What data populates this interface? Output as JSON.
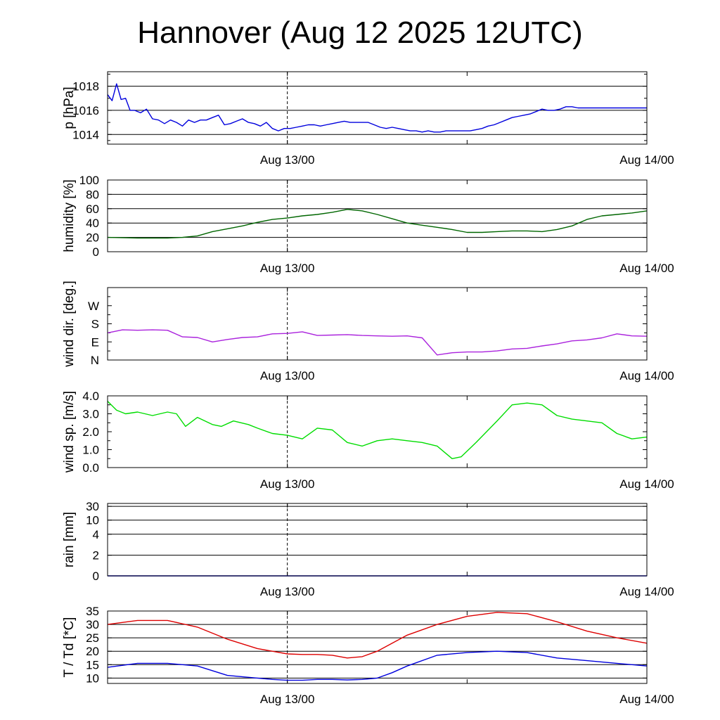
{
  "title": "Hannover (Aug 12 2025 12UTC)",
  "chart_data": [
    {
      "type": "line",
      "ylabel": "p [hPa]",
      "x_tick_labels": [
        "Aug 13/00",
        "Aug 14/00"
      ],
      "x_range_hours": [
        0,
        36
      ],
      "ylim": [
        1013.2,
        1019.2
      ],
      "yticks": [
        1014,
        1016,
        1018
      ],
      "ytick_labels": [
        "1014",
        "1016",
        "1018"
      ],
      "grid": "horizontal",
      "series": [
        {
          "color": "#0000dd",
          "x": [
            0,
            0.3,
            0.6,
            0.9,
            1.2,
            1.5,
            1.8,
            2.2,
            2.6,
            3.0,
            3.4,
            3.8,
            4.2,
            4.6,
            5.0,
            5.4,
            5.8,
            6.2,
            6.6,
            7.0,
            7.4,
            7.8,
            8.2,
            8.6,
            9.0,
            9.4,
            9.8,
            10.2,
            10.6,
            11.0,
            11.4,
            11.8,
            12.2,
            12.6,
            13.0,
            13.4,
            13.8,
            14.2,
            14.6,
            15.0,
            15.4,
            15.8,
            16.2,
            16.6,
            17.0,
            17.4,
            17.8,
            18.2,
            18.6,
            19.0,
            19.4,
            19.8,
            20.2,
            20.6,
            21.0,
            21.4,
            21.8,
            22.2,
            22.6,
            23.0,
            23.4,
            23.8,
            24.2,
            24.6,
            25.0,
            25.4,
            25.8,
            26.2,
            26.6,
            27.0,
            27.4,
            27.8,
            28.2,
            28.6,
            29.0,
            29.4,
            29.8,
            30.2,
            30.6,
            31.0,
            31.4,
            31.8,
            32.2,
            32.6,
            33.0,
            33.4,
            33.8,
            34.2,
            34.6,
            35.0,
            35.4,
            35.8,
            36.0
          ],
          "y": [
            1017.3,
            1016.8,
            1018.2,
            1016.9,
            1017.0,
            1016.0,
            1016.0,
            1015.8,
            1016.1,
            1015.3,
            1015.2,
            1014.9,
            1015.2,
            1015.0,
            1014.7,
            1015.2,
            1015.0,
            1015.2,
            1015.2,
            1015.4,
            1015.6,
            1014.8,
            1014.9,
            1015.1,
            1015.3,
            1015.0,
            1014.9,
            1014.7,
            1015.0,
            1014.5,
            1014.3,
            1014.5,
            1014.5,
            1014.6,
            1014.7,
            1014.8,
            1014.8,
            1014.7,
            1014.8,
            1014.9,
            1015.0,
            1015.1,
            1015.0,
            1015.0,
            1015.0,
            1015.0,
            1014.8,
            1014.6,
            1014.5,
            1014.6,
            1014.5,
            1014.4,
            1014.3,
            1014.3,
            1014.2,
            1014.3,
            1014.2,
            1014.2,
            1014.3,
            1014.3,
            1014.3,
            1014.3,
            1014.3,
            1014.4,
            1014.5,
            1014.7,
            1014.8,
            1015.0,
            1015.2,
            1015.4,
            1015.5,
            1015.6,
            1015.7,
            1015.9,
            1016.1,
            1016.0,
            1016.0,
            1016.1,
            1016.3,
            1016.3,
            1016.2,
            1016.2,
            1016.2,
            1016.2,
            1016.2,
            1016.2,
            1016.2,
            1016.2,
            1016.2,
            1016.2,
            1016.2,
            1016.2,
            1016.2
          ]
        }
      ]
    },
    {
      "type": "line",
      "ylabel": "humidity [%]",
      "x_tick_labels": [
        "Aug 13/00",
        "Aug 14/00"
      ],
      "x_range_hours": [
        0,
        36
      ],
      "ylim": [
        0,
        100
      ],
      "yticks": [
        0,
        20,
        40,
        60,
        80,
        100
      ],
      "ytick_labels": [
        "0",
        "20",
        "40",
        "60",
        "80",
        "100"
      ],
      "grid": "horizontal",
      "series": [
        {
          "color": "#006600",
          "x": [
            0,
            2,
            4,
            5,
            6,
            7,
            8,
            9,
            10,
            11,
            12,
            13,
            14,
            15,
            16,
            17,
            18,
            19,
            20,
            21,
            22,
            23,
            24,
            25,
            26,
            27,
            28,
            29,
            30,
            31,
            32,
            33,
            34,
            35,
            36
          ],
          "y": [
            20,
            19,
            19,
            20,
            22,
            28,
            32,
            36,
            41,
            45,
            47,
            50,
            52,
            55,
            59,
            57,
            52,
            46,
            40,
            37,
            34,
            31,
            27,
            27,
            28,
            29,
            29,
            28,
            31,
            36,
            45,
            50,
            52,
            54,
            57
          ]
        }
      ]
    },
    {
      "type": "line",
      "ylabel": "wind dir. [deg.]",
      "x_tick_labels": [
        "Aug 13/00",
        "Aug 14/00"
      ],
      "x_range_hours": [
        0,
        36
      ],
      "ylim": [
        0,
        360
      ],
      "yticks": [
        0,
        90,
        180,
        270
      ],
      "ytick_labels": [
        "N",
        "E",
        "S",
        "W"
      ],
      "grid": "none",
      "series": [
        {
          "color": "#aa22dd",
          "x": [
            0,
            1,
            2,
            3,
            4,
            5,
            6,
            7,
            8,
            9,
            10,
            11,
            12,
            13,
            14,
            15,
            16,
            17,
            18,
            19,
            20,
            21,
            22,
            23,
            24,
            25,
            26,
            27,
            28,
            29,
            30,
            31,
            32,
            33,
            34,
            35,
            36
          ],
          "y": [
            135,
            150,
            148,
            150,
            148,
            115,
            112,
            90,
            102,
            112,
            115,
            130,
            132,
            140,
            122,
            124,
            126,
            122,
            120,
            118,
            120,
            110,
            25,
            36,
            40,
            40,
            45,
            55,
            58,
            70,
            80,
            95,
            100,
            110,
            130,
            120,
            118
          ]
        }
      ]
    },
    {
      "type": "line",
      "ylabel": "wind sp. [m/s]",
      "x_tick_labels": [
        "Aug 13/00",
        "Aug 14/00"
      ],
      "x_range_hours": [
        0,
        36
      ],
      "ylim": [
        0,
        4.0
      ],
      "yticks": [
        0,
        1,
        2,
        3,
        4
      ],
      "ytick_labels": [
        "0.0",
        "1.0",
        "2.0",
        "3.0",
        "4.0"
      ],
      "grid": "none",
      "series": [
        {
          "color": "#00dd00",
          "x": [
            0,
            0.6,
            1.2,
            2.0,
            3.0,
            4.0,
            4.6,
            5.2,
            6.0,
            7.0,
            7.6,
            8.4,
            9.4,
            10.0,
            11.0,
            12.0,
            13.0,
            14.0,
            15.0,
            16.0,
            17.0,
            18.0,
            19.0,
            20.0,
            21.0,
            22.0,
            23.0,
            23.6,
            24.6,
            26.0,
            27.0,
            28.0,
            29.0,
            30.0,
            31.0,
            32.0,
            33.0,
            34.0,
            35.0,
            36.0
          ],
          "y": [
            3.7,
            3.2,
            3.0,
            3.1,
            2.9,
            3.1,
            3.0,
            2.3,
            2.8,
            2.4,
            2.3,
            2.6,
            2.4,
            2.2,
            1.9,
            1.8,
            1.6,
            2.2,
            2.1,
            1.4,
            1.2,
            1.5,
            1.6,
            1.5,
            1.4,
            1.2,
            0.5,
            0.6,
            1.4,
            2.6,
            3.5,
            3.6,
            3.5,
            2.9,
            2.7,
            2.6,
            2.5,
            1.9,
            1.6,
            1.7
          ]
        }
      ]
    },
    {
      "type": "line",
      "ylabel": "rain [mm]",
      "x_tick_labels": [
        "Aug 13/00",
        "Aug 14/00"
      ],
      "x_range_hours": [
        0,
        36
      ],
      "scale": "nonlinear",
      "yticks": [
        0,
        2,
        4,
        10,
        30
      ],
      "ytick_labels": [
        "0",
        "2",
        "4",
        "10",
        "30"
      ],
      "grid": "horizontal",
      "series": [
        {
          "color": "#0000dd",
          "x": [
            0,
            36
          ],
          "y": [
            0,
            0
          ]
        }
      ]
    },
    {
      "type": "line",
      "ylabel": "T / Td [*C]",
      "x_tick_labels": [
        "Aug 13/00",
        "Aug 14/00"
      ],
      "x_range_hours": [
        0,
        36
      ],
      "ylim": [
        8,
        35
      ],
      "yticks": [
        10,
        15,
        20,
        25,
        30,
        35
      ],
      "ytick_labels": [
        "10",
        "15",
        "20",
        "25",
        "30",
        "35"
      ],
      "grid": "horizontal",
      "series": [
        {
          "color": "#dd0000",
          "x": [
            0,
            2,
            4,
            6,
            8,
            10,
            12,
            13,
            14,
            15,
            16,
            17,
            18,
            19,
            20,
            22,
            24,
            26,
            28,
            30,
            32,
            34,
            36
          ],
          "y": [
            30,
            31.5,
            31.5,
            29,
            24.5,
            21,
            19,
            18.8,
            18.8,
            18.5,
            17.5,
            18,
            20,
            23,
            26,
            30,
            33,
            34.5,
            34,
            31,
            27.5,
            25,
            23
          ]
        },
        {
          "color": "#0000dd",
          "x": [
            0,
            2,
            4,
            6,
            8,
            10,
            11,
            12,
            13,
            14,
            15,
            16,
            17,
            18,
            19,
            20,
            22,
            24,
            26,
            28,
            30,
            32,
            34,
            36
          ],
          "y": [
            14,
            15.5,
            15.5,
            14.5,
            11,
            10,
            9.5,
            9.2,
            9.2,
            9.5,
            9.5,
            9.3,
            9.5,
            10,
            12,
            14.5,
            18.5,
            19.5,
            20,
            19.5,
            17.5,
            16.5,
            15.5,
            14.5
          ]
        }
      ]
    }
  ]
}
